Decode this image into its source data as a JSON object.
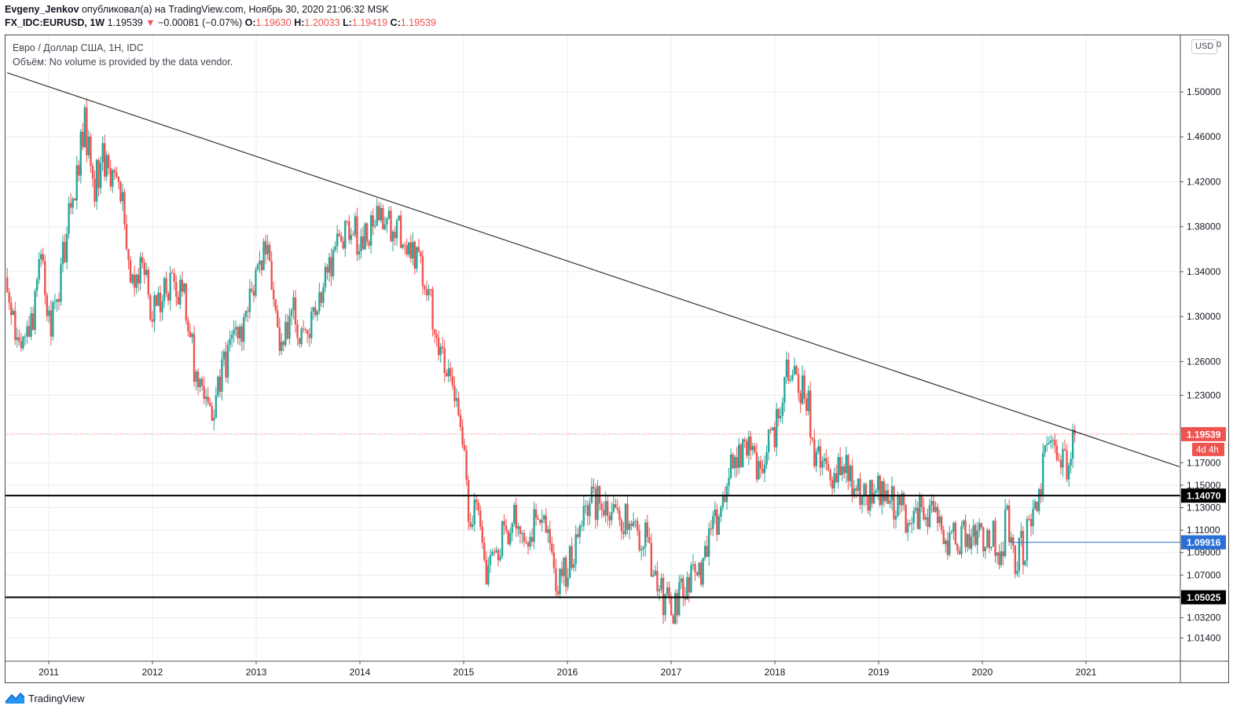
{
  "header": {
    "author": "Evgeny_Jenkov",
    "published_text": "опубликовал(а) на TradingView.com, Ноябрь 30, 2020 21:06:32 MSK",
    "symbol": "FX_IDC:EURUSD, 1W",
    "last_price": "1.19539",
    "change_arrow": "▼",
    "change": "−0.00081 (−0.07%)",
    "o_label": "O:",
    "o_value": "1.19630",
    "h_label": "H:",
    "h_value": "1.20033",
    "l_label": "L:",
    "l_value": "1.19419",
    "c_label": "C:",
    "c_value": "1.19539"
  },
  "legend": {
    "title": "Евро / Доллар США, 1Н, IDC",
    "volume_label": "Объём:",
    "volume_text": "No volume is provided by the data vendor."
  },
  "price_scale": {
    "currency_button": "USD",
    "currency_fragment": "0"
  },
  "footer": {
    "brand": "TradingView"
  },
  "colors": {
    "up": "#26a69a",
    "down": "#ef5350",
    "grid": "#e9ecf2",
    "trendline": "#333333",
    "level_line": "#000000",
    "blue_level": "#2a6fd6",
    "last_price_badge": "#ef5350"
  },
  "chart_data": {
    "type": "candlestick",
    "symbol": "FX_IDC:EURUSD",
    "interval": "1W",
    "x_ticks": [
      "2011",
      "2012",
      "2013",
      "2014",
      "2015",
      "2016",
      "2017",
      "2018",
      "2019",
      "2020",
      "2021"
    ],
    "y_ticks": [
      "1.50000",
      "1.46000",
      "1.42000",
      "1.38000",
      "1.34000",
      "1.30000",
      "1.26000",
      "1.23000",
      "1.17000",
      "1.15000",
      "1.13000",
      "1.11000",
      "1.09000",
      "1.07000",
      "1.03200",
      "1.01400"
    ],
    "y_range": [
      1.0,
      1.55
    ],
    "x_range": [
      2010.6,
      2021.9
    ],
    "trendline": {
      "start": [
        2010.6,
        1.517
      ],
      "end": [
        2021.9,
        1.1665
      ]
    },
    "horizontal_levels": [
      {
        "value": 1.1407,
        "label": "1.14070",
        "style": "black"
      },
      {
        "value": 1.05025,
        "label": "1.05025",
        "style": "black"
      },
      {
        "value": 1.09916,
        "label": "1.09916",
        "style": "blue",
        "from_x": 2020.27
      }
    ],
    "last_price": {
      "value": 1.19539,
      "label": "1.19539",
      "countdown": "4d 4h"
    },
    "anchors": [
      [
        2010.6,
        1.335
      ],
      [
        2010.7,
        1.27
      ],
      [
        2010.85,
        1.3
      ],
      [
        2010.92,
        1.365
      ],
      [
        2011.02,
        1.29
      ],
      [
        2011.08,
        1.32
      ],
      [
        2011.35,
        1.475
      ],
      [
        2011.42,
        1.412
      ],
      [
        2011.52,
        1.44
      ],
      [
        2011.68,
        1.425
      ],
      [
        2011.82,
        1.32
      ],
      [
        2011.9,
        1.36
      ],
      [
        2011.98,
        1.295
      ],
      [
        2012.12,
        1.32
      ],
      [
        2012.3,
        1.325
      ],
      [
        2012.42,
        1.245
      ],
      [
        2012.56,
        1.215
      ],
      [
        2012.68,
        1.25
      ],
      [
        2012.9,
        1.3
      ],
      [
        2013.1,
        1.36
      ],
      [
        2013.22,
        1.285
      ],
      [
        2013.35,
        1.305
      ],
      [
        2013.48,
        1.28
      ],
      [
        2013.6,
        1.32
      ],
      [
        2013.85,
        1.375
      ],
      [
        2014.05,
        1.37
      ],
      [
        2014.2,
        1.39
      ],
      [
        2014.33,
        1.38
      ],
      [
        2014.52,
        1.36
      ],
      [
        2014.68,
        1.31
      ],
      [
        2014.82,
        1.255
      ],
      [
        2014.95,
        1.21
      ],
      [
        2015.05,
        1.13
      ],
      [
        2015.13,
        1.12
      ],
      [
        2015.22,
        1.07
      ],
      [
        2015.3,
        1.085
      ],
      [
        2015.4,
        1.11
      ],
      [
        2015.5,
        1.12
      ],
      [
        2015.62,
        1.105
      ],
      [
        2015.72,
        1.13
      ],
      [
        2015.85,
        1.08
      ],
      [
        2015.93,
        1.065
      ],
      [
        2016.05,
        1.09
      ],
      [
        2016.2,
        1.13
      ],
      [
        2016.33,
        1.14
      ],
      [
        2016.45,
        1.12
      ],
      [
        2016.6,
        1.115
      ],
      [
        2016.75,
        1.1
      ],
      [
        2016.9,
        1.055
      ],
      [
        2017.0,
        1.04
      ],
      [
        2017.15,
        1.065
      ],
      [
        2017.3,
        1.075
      ],
      [
        2017.45,
        1.12
      ],
      [
        2017.6,
        1.17
      ],
      [
        2017.7,
        1.185
      ],
      [
        2017.85,
        1.165
      ],
      [
        2018.0,
        1.2
      ],
      [
        2018.1,
        1.245
      ],
      [
        2018.3,
        1.235
      ],
      [
        2018.38,
        1.175
      ],
      [
        2018.5,
        1.165
      ],
      [
        2018.7,
        1.16
      ],
      [
        2018.8,
        1.14
      ],
      [
        2018.95,
        1.145
      ],
      [
        2019.1,
        1.14
      ],
      [
        2019.3,
        1.12
      ],
      [
        2019.5,
        1.13
      ],
      [
        2019.6,
        1.11
      ],
      [
        2019.7,
        1.1
      ],
      [
        2019.82,
        1.105
      ],
      [
        2019.95,
        1.11
      ],
      [
        2020.12,
        1.1
      ],
      [
        2020.2,
        1.08
      ],
      [
        2020.23,
        1.135
      ],
      [
        2020.28,
        1.085
      ],
      [
        2020.35,
        1.09
      ],
      [
        2020.42,
        1.1
      ],
      [
        2020.5,
        1.125
      ],
      [
        2020.55,
        1.145
      ],
      [
        2020.6,
        1.175
      ],
      [
        2020.65,
        1.185
      ],
      [
        2020.72,
        1.18
      ],
      [
        2020.8,
        1.17
      ],
      [
        2020.86,
        1.18
      ],
      [
        2020.91,
        1.195
      ]
    ]
  }
}
